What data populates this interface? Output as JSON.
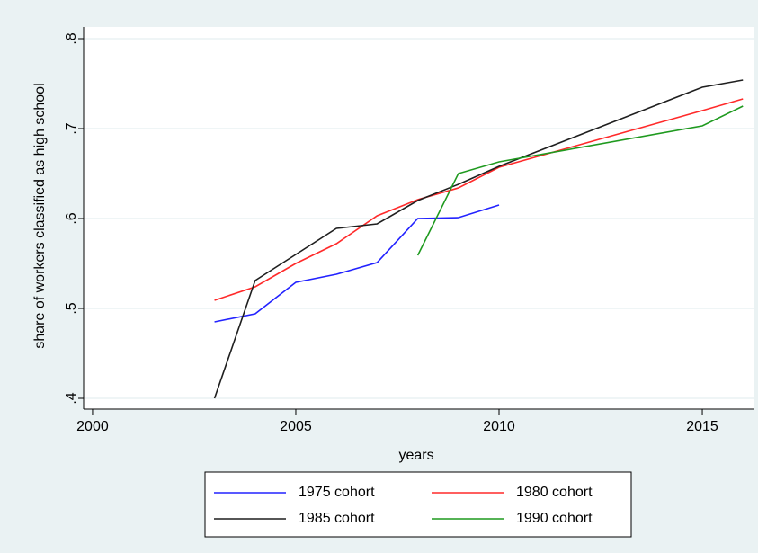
{
  "chart_data": {
    "type": "line",
    "x_label": "years",
    "y_label": "share of workers classified as high school",
    "x": [
      2003,
      2004,
      2005,
      2006,
      2007,
      2008,
      2009,
      2010,
      2015,
      2016
    ],
    "series": [
      {
        "name": "1975 cohort",
        "color": "#2222ff",
        "values": [
          0.485,
          0.494,
          0.529,
          0.538,
          0.551,
          0.6,
          0.601,
          0.615,
          null,
          null
        ]
      },
      {
        "name": "1980 cohort",
        "color": "#ff2a2a",
        "values": [
          0.509,
          0.524,
          0.55,
          0.572,
          0.603,
          0.621,
          0.634,
          0.657,
          0.72,
          0.733
        ]
      },
      {
        "name": "1985 cohort",
        "color": "#1f1f1f",
        "values": [
          0.4,
          0.531,
          0.56,
          0.589,
          0.594,
          0.62,
          0.638,
          0.658,
          0.746,
          0.754
        ]
      },
      {
        "name": "1990 cohort",
        "color": "#1f9a1f",
        "values": [
          null,
          null,
          null,
          null,
          null,
          0.559,
          0.65,
          0.663,
          0.703,
          0.725
        ]
      }
    ],
    "xlim": [
      1999.78,
      2016.26
    ],
    "ylim": [
      0.388,
      0.813
    ],
    "xticks": [
      2000,
      2005,
      2010,
      2015
    ],
    "yticks": [
      {
        "value": 0.4,
        "label": ".4"
      },
      {
        "value": 0.5,
        "label": ".5"
      },
      {
        "value": 0.6,
        "label": ".6"
      },
      {
        "value": 0.7,
        "label": ".7"
      },
      {
        "value": 0.8,
        "label": ".8"
      }
    ],
    "grid": true
  }
}
